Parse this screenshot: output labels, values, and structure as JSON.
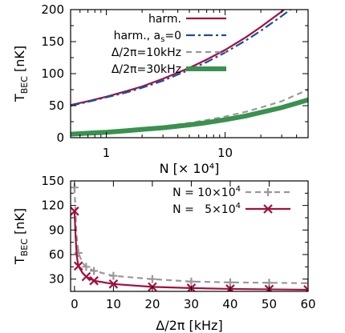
{
  "chart_data": [
    {
      "type": "line",
      "xscale": "log",
      "xlim": [
        0.5,
        50
      ],
      "ylim": [
        0,
        200
      ],
      "xlabel": "N [× 10⁴]",
      "ylabel": "T",
      "ylabel_sub": "BEC",
      "ylabel_unit": " [nK]",
      "xticks": [
        {
          "v": 1,
          "label": "1"
        },
        {
          "v": 10,
          "label": "10"
        }
      ],
      "yticks": [
        0,
        50,
        100,
        150,
        200
      ],
      "legend_position": "top-right",
      "series": [
        {
          "name": "harm.",
          "color": "#a0103f",
          "dash": "solid",
          "width": 2.2,
          "x": [
            0.5,
            0.7,
            1,
            1.5,
            2,
            3,
            5,
            7,
            10,
            15,
            20,
            30,
            36
          ],
          "y": [
            51,
            57,
            64,
            73,
            80,
            92,
            109,
            122,
            137,
            157,
            173,
            197,
            210
          ]
        },
        {
          "name": "harm., a",
          "name_sub": "s",
          "name_suffix": "=0",
          "color": "#1a4fa0",
          "dash": "dashdot",
          "width": 2.2,
          "x": [
            0.5,
            0.7,
            1,
            1.5,
            2,
            3,
            5,
            7,
            10,
            15,
            20,
            30,
            40
          ],
          "y": [
            50,
            56,
            63,
            71,
            78,
            89,
            106,
            118,
            133,
            152,
            167,
            190,
            207
          ]
        },
        {
          "name": "Δ/2π=10kHz",
          "color": "#999999",
          "dash": "dashed",
          "width": 2.2,
          "x": [
            0.5,
            0.7,
            1,
            1.5,
            2,
            3,
            5,
            7,
            10,
            15,
            20,
            30,
            50
          ],
          "y": [
            6,
            7.5,
            9.5,
            12,
            14,
            17.5,
            23,
            27.5,
            33,
            40.5,
            47,
            57,
            75
          ]
        },
        {
          "name": "Δ/2π=30kHz",
          "color": "#3a9150",
          "dash": "solid",
          "width": 6,
          "x": [
            0.5,
            0.7,
            1,
            1.5,
            2,
            3,
            5,
            7,
            10,
            15,
            20,
            30,
            50
          ],
          "y": [
            5.5,
            7,
            8.5,
            11,
            13,
            15.5,
            20,
            23.5,
            28,
            34,
            39.5,
            47,
            59
          ]
        }
      ]
    },
    {
      "type": "line",
      "xlim": [
        -1,
        60
      ],
      "ylim": [
        15,
        150
      ],
      "xlabel": "Δ/2π  [kHz]",
      "ylabel": "T",
      "ylabel_sub": "BEC",
      "ylabel_unit": " [nK]",
      "xticks": [
        0,
        10,
        20,
        30,
        40,
        50,
        60
      ],
      "yticks": [
        30,
        60,
        90,
        120,
        150
      ],
      "legend_position": "top-right",
      "series": [
        {
          "name": "N = 10×10",
          "name_sup": "4",
          "color": "#999999",
          "dash": "dashed",
          "marker": "plus",
          "width": 2.2,
          "x": [
            0,
            0.5,
            1,
            2,
            3,
            5,
            10,
            20,
            30,
            40,
            50,
            60
          ],
          "y": [
            142,
            85,
            62,
            50,
            45,
            40,
            34,
            30,
            27,
            26,
            25.5,
            25
          ],
          "marker_x": [
            0,
            1,
            3,
            5,
            10,
            20,
            30,
            40,
            50,
            60
          ]
        },
        {
          "name": "N =   5×10",
          "name_sup": "4",
          "color": "#a0103f",
          "dash": "solid",
          "marker": "x",
          "width": 2.2,
          "x": [
            0,
            0.3,
            0.6,
            1,
            2,
            3,
            5,
            10,
            20,
            30,
            40,
            50,
            60
          ],
          "y": [
            113,
            80,
            58,
            46,
            38,
            33,
            28,
            24,
            20.5,
            19,
            18,
            17.5,
            17
          ],
          "marker_x": [
            0,
            1,
            3,
            5,
            10,
            20,
            30,
            40,
            50,
            60
          ]
        }
      ]
    }
  ]
}
